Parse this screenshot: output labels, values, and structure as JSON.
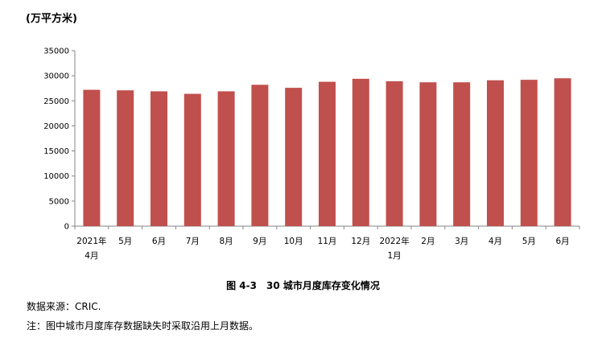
{
  "unit_label": "(万平方米)",
  "caption": "图 4-3　30 城市月度库存变化情况",
  "source_note": "数据来源：CRIC.",
  "footnote": "注：图中城市月度库存数据缺失时采取沿用上月数据。",
  "colors": {
    "bar": "#c0504d",
    "axis": "#868686"
  },
  "chart_data": {
    "type": "bar",
    "categories": [
      [
        "2021年",
        "4月"
      ],
      [
        "5月"
      ],
      [
        "6月"
      ],
      [
        "7月"
      ],
      [
        "8月"
      ],
      [
        "9月"
      ],
      [
        "10月"
      ],
      [
        "11月"
      ],
      [
        "12月"
      ],
      [
        "2022年",
        "1月"
      ],
      [
        "2月"
      ],
      [
        "3月"
      ],
      [
        "4月"
      ],
      [
        "5月"
      ],
      [
        "6月"
      ]
    ],
    "values": [
      27200,
      27100,
      26900,
      26400,
      26900,
      28200,
      27600,
      28800,
      29400,
      28900,
      28700,
      28700,
      29100,
      29200,
      29500
    ],
    "ylim": [
      0,
      35000
    ],
    "yticks": [
      0,
      5000,
      10000,
      15000,
      20000,
      25000,
      30000,
      35000
    ],
    "grid": false,
    "legend": "none"
  }
}
